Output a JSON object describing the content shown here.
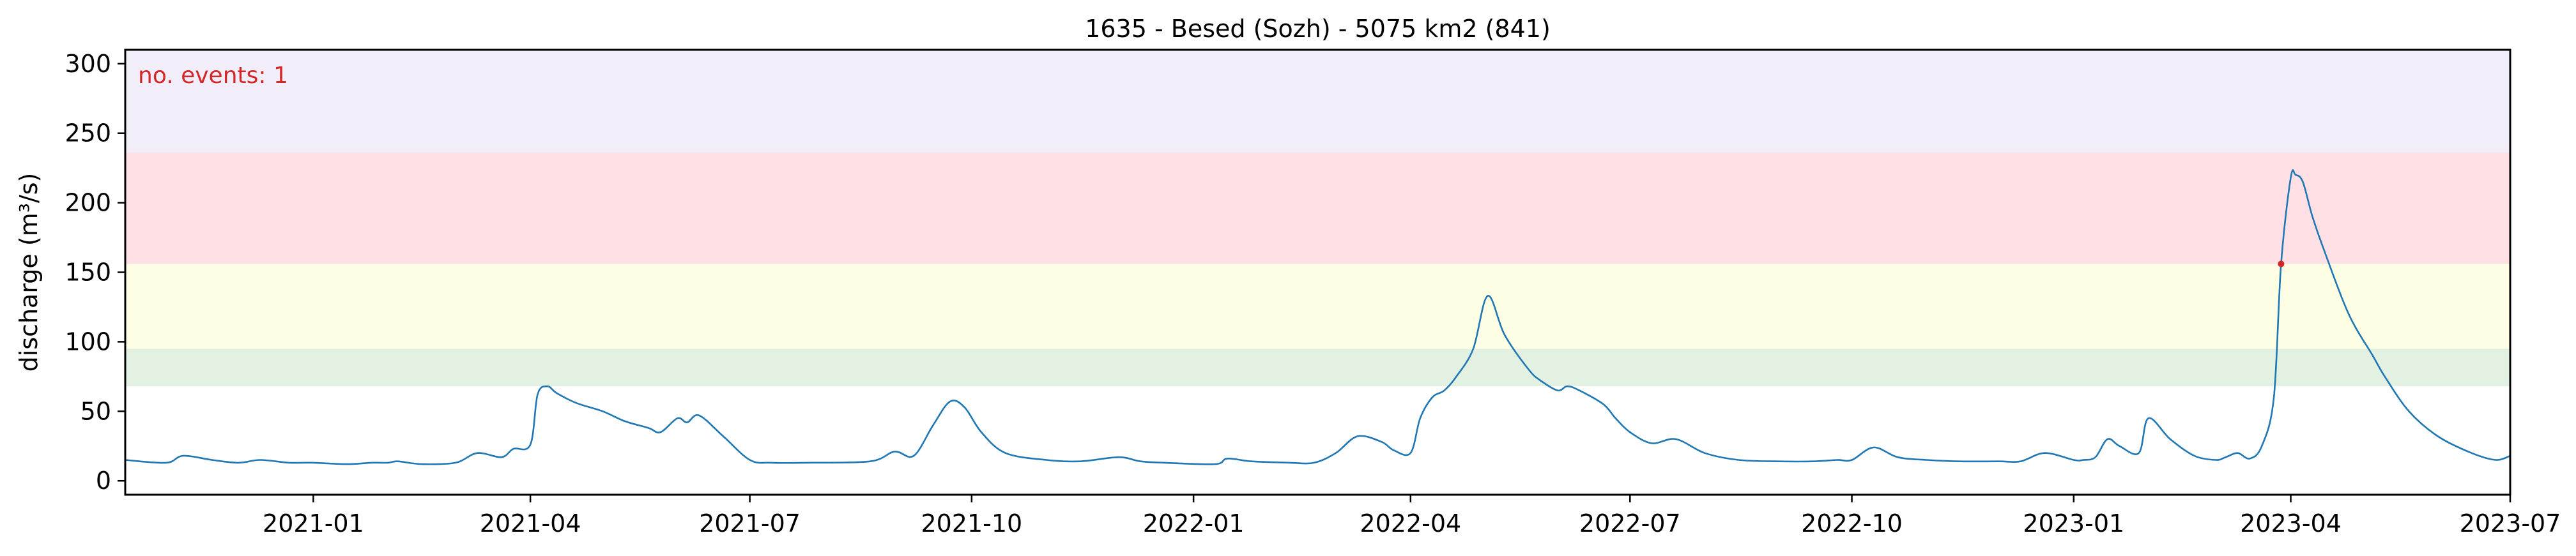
{
  "chart_data": {
    "type": "line",
    "title": "1635 - Besed (Sozh) - 5075 km2 (841)",
    "xlabel": "",
    "ylabel": "discharge (m³/s)",
    "xlim": [
      "2020-10-15",
      "2023-07-01"
    ],
    "ylim": [
      -10,
      310
    ],
    "y_ticks": [
      0,
      50,
      100,
      150,
      200,
      250,
      300
    ],
    "x_ticks": [
      "2021-01",
      "2021-04",
      "2021-07",
      "2021-10",
      "2022-01",
      "2022-04",
      "2022-07",
      "2022-10",
      "2023-01",
      "2023-04",
      "2023-07"
    ],
    "grid": false,
    "annotation": {
      "text": "no. events: 1",
      "color": "#d62728"
    },
    "bands": [
      {
        "from": 68,
        "to": 95,
        "color": "#e3f1e3"
      },
      {
        "from": 95,
        "to": 156,
        "color": "#fefee4"
      },
      {
        "from": 156,
        "to": 236,
        "color": "#ffe0e5"
      },
      {
        "from": 236,
        "to": 310,
        "color": "#f1eefa"
      }
    ],
    "series": [
      {
        "color": "#1f77b4",
        "x": [
          "2020-10-15",
          "2020-11-01",
          "2020-11-08",
          "2020-11-20",
          "2020-12-01",
          "2020-12-10",
          "2020-12-22",
          "2021-01-01",
          "2021-01-15",
          "2021-01-25",
          "2021-02-01",
          "2021-02-05",
          "2021-02-15",
          "2021-03-01",
          "2021-03-10",
          "2021-03-20",
          "2021-03-25",
          "2021-04-01",
          "2021-04-04",
          "2021-04-08",
          "2021-04-12",
          "2021-04-20",
          "2021-05-01",
          "2021-05-10",
          "2021-05-20",
          "2021-05-25",
          "2021-06-01",
          "2021-06-05",
          "2021-06-10",
          "2021-06-20",
          "2021-07-01",
          "2021-07-10",
          "2021-07-25",
          "2021-08-20",
          "2021-08-30",
          "2021-09-07",
          "2021-09-15",
          "2021-09-22",
          "2021-09-28",
          "2021-10-05",
          "2021-10-15",
          "2021-11-01",
          "2021-11-15",
          "2021-12-01",
          "2021-12-10",
          "2021-12-20",
          "2022-01-10",
          "2022-01-15",
          "2022-01-25",
          "2022-02-10",
          "2022-02-20",
          "2022-03-01",
          "2022-03-10",
          "2022-03-20",
          "2022-03-25",
          "2022-04-01",
          "2022-04-05",
          "2022-04-10",
          "2022-04-15",
          "2022-04-20",
          "2022-04-27",
          "2022-05-03",
          "2022-05-10",
          "2022-05-20",
          "2022-05-25",
          "2022-06-01",
          "2022-06-05",
          "2022-06-10",
          "2022-06-20",
          "2022-06-25",
          "2022-07-01",
          "2022-07-10",
          "2022-07-20",
          "2022-08-01",
          "2022-08-15",
          "2022-09-01",
          "2022-09-15",
          "2022-09-25",
          "2022-10-01",
          "2022-10-10",
          "2022-10-20",
          "2022-11-01",
          "2022-11-15",
          "2022-12-01",
          "2022-12-10",
          "2022-12-20",
          "2023-01-01",
          "2023-01-05",
          "2023-01-10",
          "2023-01-15",
          "2023-01-20",
          "2023-01-28",
          "2023-02-01",
          "2023-02-10",
          "2023-02-20",
          "2023-03-01",
          "2023-03-05",
          "2023-03-10",
          "2023-03-15",
          "2023-03-20",
          "2023-03-25",
          "2023-03-28",
          "2023-04-01",
          "2023-04-03",
          "2023-04-06",
          "2023-04-10",
          "2023-04-15",
          "2023-04-25",
          "2023-05-05",
          "2023-05-10",
          "2023-05-20",
          "2023-06-01",
          "2023-06-15",
          "2023-06-25",
          "2023-07-01"
        ],
        "y": [
          15,
          13,
          18,
          15,
          13,
          15,
          13,
          13,
          12,
          13,
          13,
          14,
          12,
          13,
          20,
          17,
          23,
          26,
          62,
          68,
          63,
          56,
          50,
          43,
          38,
          35,
          45,
          42,
          47,
          32,
          15,
          13,
          13,
          14,
          21,
          18,
          40,
          57,
          53,
          35,
          20,
          15,
          14,
          17,
          14,
          13,
          12,
          16,
          14,
          13,
          13,
          20,
          32,
          28,
          22,
          20,
          45,
          60,
          65,
          75,
          95,
          133,
          105,
          80,
          72,
          65,
          68,
          65,
          55,
          45,
          35,
          27,
          30,
          20,
          15,
          14,
          14,
          15,
          15,
          24,
          17,
          15,
          14,
          14,
          14,
          20,
          15,
          15,
          17,
          30,
          25,
          20,
          45,
          30,
          18,
          15,
          17,
          20,
          16,
          25,
          60,
          156,
          218,
          220,
          215,
          190,
          165,
          120,
          90,
          75,
          50,
          32,
          20,
          15,
          18
        ]
      }
    ],
    "events": [
      {
        "x": "2023-03-28",
        "y": 156,
        "color": "#d62728"
      }
    ]
  }
}
